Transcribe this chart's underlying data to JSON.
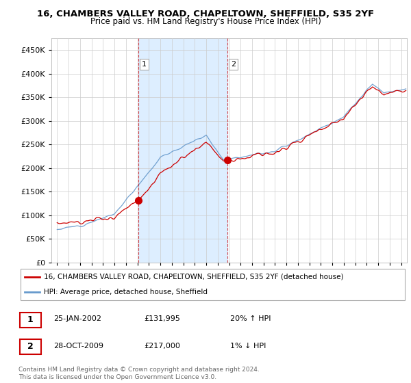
{
  "title1": "16, CHAMBERS VALLEY ROAD, CHAPELTOWN, SHEFFIELD, S35 2YF",
  "title2": "Price paid vs. HM Land Registry's House Price Index (HPI)",
  "legend_line1": "16, CHAMBERS VALLEY ROAD, CHAPELTOWN, SHEFFIELD, S35 2YF (detached house)",
  "legend_line2": "HPI: Average price, detached house, Sheffield",
  "sale1_date": "25-JAN-2002",
  "sale1_price": "£131,995",
  "sale1_hpi": "20% ↑ HPI",
  "sale2_date": "28-OCT-2009",
  "sale2_price": "£217,000",
  "sale2_hpi": "1% ↓ HPI",
  "footer": "Contains HM Land Registry data © Crown copyright and database right 2024.\nThis data is licensed under the Open Government Licence v3.0.",
  "sale1_year": 2002.07,
  "sale2_year": 2009.83,
  "red_color": "#cc0000",
  "blue_color": "#6699cc",
  "shade_color": "#ddeeff",
  "bg_color": "#ffffff",
  "grid_color": "#cccccc",
  "ylim": [
    0,
    475000
  ],
  "xlim_start": 1994.5,
  "xlim_end": 2025.5,
  "sale1_price_val": 131995,
  "sale2_price_val": 217000,
  "sale1_marker_y": 131995,
  "sale2_marker_y": 217000
}
